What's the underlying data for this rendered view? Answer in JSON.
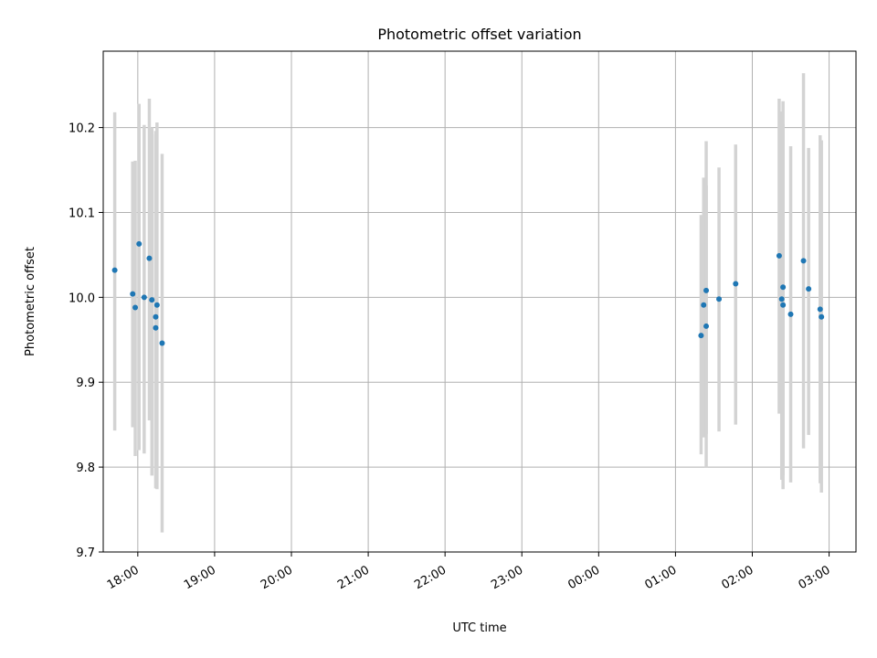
{
  "chart_data": {
    "type": "scatter",
    "title": "Photometric offset variation",
    "xlabel": "UTC time",
    "ylabel": "Photometric offset",
    "grid": true,
    "x_axis_kind": "time",
    "x_range": [
      "17:33",
      "03:21"
    ],
    "ylim": [
      9.7,
      10.29
    ],
    "x_ticks": [
      "18:00",
      "19:00",
      "20:00",
      "21:00",
      "22:00",
      "23:00",
      "00:00",
      "01:00",
      "02:00",
      "03:00"
    ],
    "y_ticks": [
      "9.7",
      "9.8",
      "9.9",
      "10.0",
      "10.1",
      "10.2"
    ],
    "colors": {
      "points": "#1f77b4",
      "errorbars": "#d3d3d3"
    },
    "points": [
      {
        "x": "17:42",
        "y": 10.032,
        "low": 9.843,
        "high": 10.218
      },
      {
        "x": "17:56",
        "y": 10.004,
        "low": 9.847,
        "high": 10.16
      },
      {
        "x": "17:58",
        "y": 9.988,
        "low": 9.813,
        "high": 10.161
      },
      {
        "x": "18:01",
        "y": 10.063,
        "low": 9.82,
        "high": 10.228
      },
      {
        "x": "18:05",
        "y": 10.0,
        "low": 9.816,
        "high": 10.203
      },
      {
        "x": "18:09",
        "y": 10.046,
        "low": 9.855,
        "high": 10.234
      },
      {
        "x": "18:11",
        "y": 9.997,
        "low": 9.79,
        "high": 10.2
      },
      {
        "x": "18:14",
        "y": 9.977,
        "low": 9.79,
        "high": 10.196
      },
      {
        "x": "18:14",
        "y": 9.964,
        "low": 9.775,
        "high": 10.192
      },
      {
        "x": "18:15",
        "y": 9.991,
        "low": 9.774,
        "high": 10.206
      },
      {
        "x": "18:19",
        "y": 9.946,
        "low": 9.723,
        "high": 10.169
      },
      {
        "x": "01:20",
        "y": 9.955,
        "low": 9.815,
        "high": 10.097
      },
      {
        "x": "01:22",
        "y": 9.991,
        "low": 9.835,
        "high": 10.141
      },
      {
        "x": "01:24",
        "y": 9.966,
        "low": 9.8,
        "high": 10.132
      },
      {
        "x": "01:24",
        "y": 10.008,
        "low": 9.839,
        "high": 10.184
      },
      {
        "x": "01:34",
        "y": 9.998,
        "low": 9.842,
        "high": 10.153
      },
      {
        "x": "01:47",
        "y": 10.016,
        "low": 9.85,
        "high": 10.18
      },
      {
        "x": "02:21",
        "y": 10.049,
        "low": 9.863,
        "high": 10.234
      },
      {
        "x": "02:23",
        "y": 9.998,
        "low": 9.785,
        "high": 10.219
      },
      {
        "x": "02:24",
        "y": 9.991,
        "low": 9.774,
        "high": 10.231
      },
      {
        "x": "02:24",
        "y": 10.012,
        "low": 9.79,
        "high": 10.204
      },
      {
        "x": "02:30",
        "y": 9.98,
        "low": 9.782,
        "high": 10.178
      },
      {
        "x": "02:40",
        "y": 10.043,
        "low": 9.822,
        "high": 10.264
      },
      {
        "x": "02:44",
        "y": 10.01,
        "low": 9.838,
        "high": 10.176
      },
      {
        "x": "02:53",
        "y": 9.986,
        "low": 9.781,
        "high": 10.191
      },
      {
        "x": "02:54",
        "y": 9.977,
        "low": 9.77,
        "high": 10.185
      }
    ]
  }
}
